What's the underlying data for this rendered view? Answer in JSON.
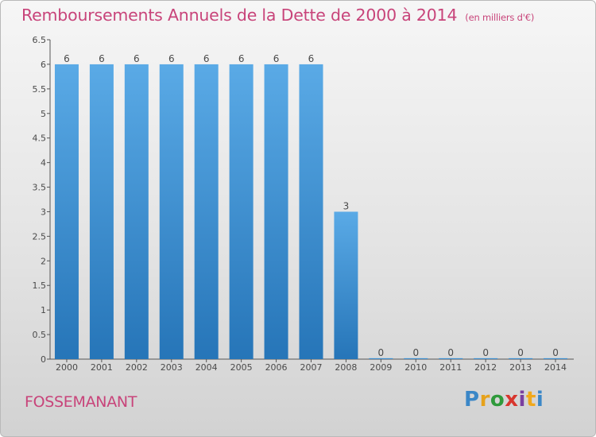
{
  "title": "Remboursements Annuels de la Dette de 2000 à 2014",
  "unit_note": "(en milliers d'€)",
  "commune": "FOSSEMANANT",
  "logo": {
    "letters": [
      "P",
      "r",
      "o",
      "x",
      "i",
      "t",
      "i"
    ],
    "colors": [
      "#3b87c7",
      "#e6a21c",
      "#2f9a3b",
      "#d8362e",
      "#7a3fa0",
      "#f0a81c",
      "#3b87c7"
    ]
  },
  "colors": {
    "bar_top": "#5aaae6",
    "bar_bottom": "#2675b8",
    "title": "#c8447a"
  },
  "chart_data": {
    "type": "bar",
    "title": "Remboursements Annuels de la Dette de 2000 à 2014",
    "xlabel": "",
    "ylabel": "",
    "categories": [
      "2000",
      "2001",
      "2002",
      "2003",
      "2004",
      "2005",
      "2006",
      "2007",
      "2008",
      "2009",
      "2010",
      "2011",
      "2012",
      "2013",
      "2014"
    ],
    "values": [
      6,
      6,
      6,
      6,
      6,
      6,
      6,
      6,
      3,
      0,
      0,
      0,
      0,
      0,
      0
    ],
    "data_labels": [
      "6",
      "6",
      "6",
      "6",
      "6",
      "6",
      "6",
      "6",
      "3",
      "0",
      "0",
      "0",
      "0",
      "0",
      "0"
    ],
    "yticks": [
      "0",
      "0.5",
      "1",
      "1.5",
      "2",
      "2.5",
      "3",
      "3.5",
      "4",
      "4.5",
      "5",
      "5.5",
      "6",
      "6.5"
    ],
    "ylim": [
      0,
      6.5
    ],
    "grid": false
  }
}
